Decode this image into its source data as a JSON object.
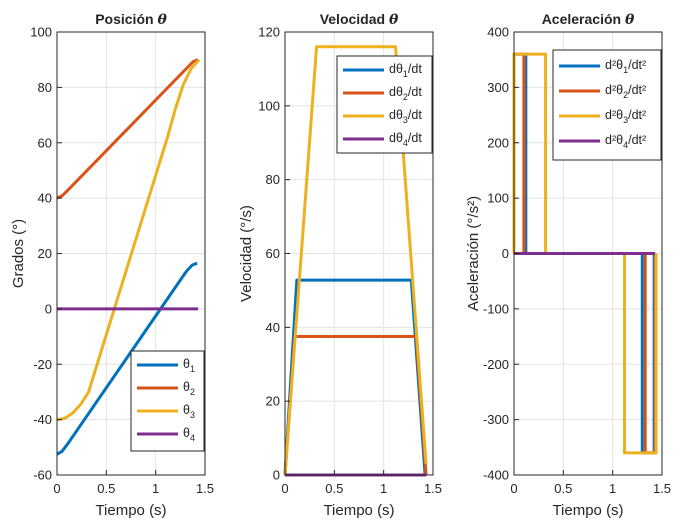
{
  "chart_data": [
    {
      "type": "line",
      "title": "Posición",
      "title_symbol": "θ",
      "xlabel": "Tiempo (s)",
      "ylabel": "Grados (°)",
      "xlim": [
        0,
        1.5
      ],
      "ylim": [
        -60,
        100
      ],
      "xticks": [
        0,
        0.5,
        1,
        1.5
      ],
      "xtick_labels": [
        "0",
        "0.5",
        "1",
        "1.5"
      ],
      "yticks": [
        -60,
        -40,
        -20,
        0,
        20,
        40,
        60,
        80,
        100
      ],
      "ytick_labels": [
        "-60",
        "-40",
        "-20",
        "0",
        "20",
        "40",
        "60",
        "80",
        "100"
      ],
      "grid": true,
      "legend_position": "bottom-right",
      "series": [
        {
          "name": "θ1",
          "label_main": "θ",
          "label_sub": "1",
          "color": "#0072BD",
          "x": [
            0,
            0.05,
            0.11,
            1.31,
            1.37,
            1.42
          ],
          "y": [
            -52.5,
            -51.5,
            -48.7,
            13.5,
            15.8,
            16.5
          ]
        },
        {
          "name": "θ2",
          "label_main": "θ",
          "label_sub": "2",
          "color": "#D95319",
          "x": [
            0,
            0.05,
            0.1,
            1.33,
            1.38,
            1.43
          ],
          "y": [
            40,
            40.8,
            42.5,
            87.5,
            89.3,
            90
          ]
        },
        {
          "name": "θ3",
          "label_main": "θ",
          "label_sub": "3",
          "color": "#EDB120",
          "x": [
            0,
            0.08,
            0.16,
            0.24,
            0.32,
            1.12,
            1.2,
            1.28,
            1.36,
            1.44
          ],
          "y": [
            -40,
            -39.5,
            -37.6,
            -34.5,
            -30,
            62,
            72.3,
            81,
            86.8,
            90
          ]
        },
        {
          "name": "θ4",
          "label_main": "θ",
          "label_sub": "4",
          "color": "#7E2F8E",
          "x": [
            0,
            1.43
          ],
          "y": [
            0,
            0
          ]
        }
      ]
    },
    {
      "type": "line",
      "title": "Velocidad",
      "title_symbol": "θ",
      "xlabel": "Tiempo (s)",
      "ylabel": "Velocidad (°/s)",
      "xlim": [
        0,
        1.5
      ],
      "ylim": [
        0,
        120
      ],
      "xticks": [
        0,
        0.5,
        1,
        1.5
      ],
      "xtick_labels": [
        "0",
        "0.5",
        "1",
        "1.5"
      ],
      "yticks": [
        0,
        20,
        40,
        60,
        80,
        100,
        120
      ],
      "ytick_labels": [
        "0",
        "20",
        "40",
        "60",
        "80",
        "100",
        "120"
      ],
      "grid": true,
      "legend_position": "top-right",
      "series": [
        {
          "name": "dθ1/dt",
          "label_main": "dθ",
          "label_sub": "1",
          "label_tail": "/dt",
          "color": "#0072BD",
          "x": [
            0,
            0.12,
            1.28,
            1.42
          ],
          "y": [
            0,
            52.8,
            52.8,
            0
          ]
        },
        {
          "name": "dθ2/dt",
          "label_main": "dθ",
          "label_sub": "2",
          "label_tail": "/dt",
          "color": "#D95319",
          "x": [
            0,
            0.1,
            1.33,
            1.43
          ],
          "y": [
            0,
            37.5,
            37.5,
            0
          ]
        },
        {
          "name": "dθ3/dt",
          "label_main": "dθ",
          "label_sub": "3",
          "label_tail": "/dt",
          "color": "#EDB120",
          "x": [
            0,
            0.32,
            1.12,
            1.43
          ],
          "y": [
            0,
            116,
            116,
            3
          ]
        },
        {
          "name": "dθ4/dt",
          "label_main": "dθ",
          "label_sub": "4",
          "label_tail": "/dt",
          "color": "#7E2F8E",
          "x": [
            0,
            1.43
          ],
          "y": [
            0,
            0
          ]
        }
      ]
    },
    {
      "type": "line",
      "title": "Aceleración",
      "title_symbol": "θ",
      "xlabel": "Tiempo (s)",
      "ylabel": "Aceleración (°/s²)",
      "xlim": [
        0,
        1.5
      ],
      "ylim": [
        -400,
        400
      ],
      "xticks": [
        0,
        0.5,
        1,
        1.5
      ],
      "xtick_labels": [
        "0",
        "0.5",
        "1",
        "1.5"
      ],
      "yticks": [
        -400,
        -300,
        -200,
        -100,
        0,
        100,
        200,
        300,
        400
      ],
      "ytick_labels": [
        "-400",
        "-300",
        "-200",
        "-100",
        "0",
        "100",
        "200",
        "300",
        "400"
      ],
      "grid": true,
      "legend_position": "top-right",
      "series": [
        {
          "name": "d²θ1/dt²",
          "label_main": "d²θ",
          "label_sub": "1",
          "label_tail": "/dt²",
          "color": "#0072BD",
          "x": [
            0,
            0,
            0.12,
            0.12,
            1.3,
            1.3,
            1.42,
            1.42,
            1.43
          ],
          "y": [
            0,
            360,
            360,
            0,
            0,
            -360,
            -360,
            0,
            0
          ]
        },
        {
          "name": "d²θ2/dt²",
          "label_main": "d²θ",
          "label_sub": "2",
          "label_tail": "/dt²",
          "color": "#D95319",
          "x": [
            0,
            0,
            0.1,
            0.1,
            1.33,
            1.33,
            1.43,
            1.43
          ],
          "y": [
            0,
            360,
            360,
            0,
            0,
            -360,
            -360,
            0
          ]
        },
        {
          "name": "d²θ3/dt²",
          "label_main": "d²θ",
          "label_sub": "3",
          "label_tail": "/dt²",
          "color": "#EDB120",
          "x": [
            0,
            0,
            0.32,
            0.32,
            1.12,
            1.12,
            1.44,
            1.44
          ],
          "y": [
            0,
            360,
            360,
            0,
            0,
            -360,
            -360,
            0
          ]
        },
        {
          "name": "d²θ4/dt²",
          "label_main": "d²θ",
          "label_sub": "4",
          "label_tail": "/dt²",
          "color": "#7E2F8E",
          "x": [
            0,
            1.43
          ],
          "y": [
            0,
            0
          ]
        }
      ]
    }
  ]
}
